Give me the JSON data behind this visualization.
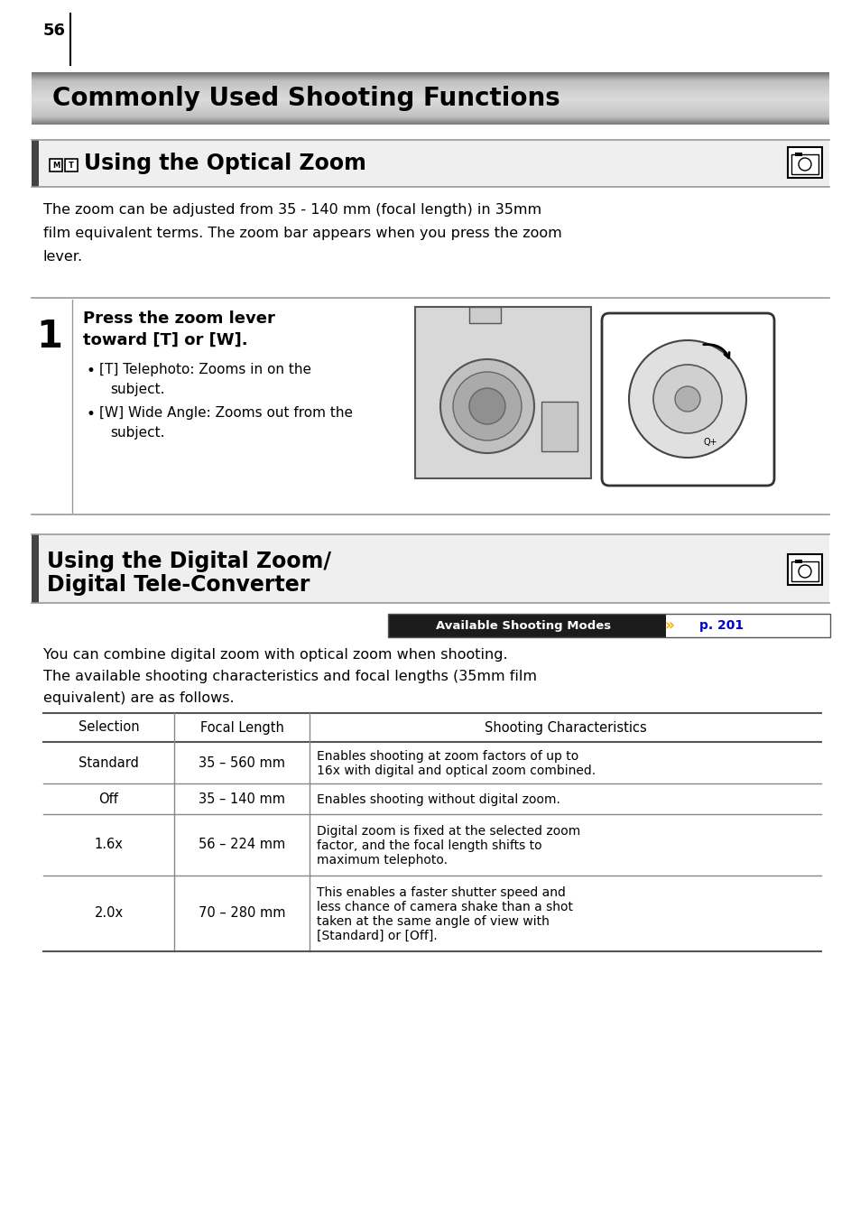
{
  "page_number": "56",
  "main_title": "Commonly Used Shooting Functions",
  "section1_title": "Using the Optical Zoom",
  "section1_body": "The zoom can be adjusted from 35 - 140 mm (focal length) in 35mm film equivalent terms. The zoom bar appears when you press the zoom lever.",
  "step1_title": "Press the zoom lever\ntoward [T] or [W].",
  "step1_bullet1": "[T] Telephoto: Zooms in on the subject.",
  "step1_bullet2": "[W] Wide Angle: Zooms out from the subject.",
  "section2_title1": "Using the Digital Zoom/",
  "section2_title2": "Digital Tele-Converter",
  "section2_modes_label": "Available Shooting Modes",
  "section2_modes_ref": "p. 201",
  "section2_body": "You can combine digital zoom with optical zoom when shooting.\nThe available shooting characteristics and focal lengths (35mm film\nequivalent) are as follows.",
  "table_headers": [
    "Selection",
    "Focal Length",
    "Shooting Characteristics"
  ],
  "table_rows": [
    [
      "Standard",
      "35 – 560 mm",
      "Enables shooting at zoom factors of up to\n16x with digital and optical zoom combined."
    ],
    [
      "Off",
      "35 – 140 mm",
      "Enables shooting without digital zoom."
    ],
    [
      "1.6x",
      "56 – 224 mm",
      "Digital zoom is fixed at the selected zoom\nfactor, and the focal length shifts to\nmaximum telephoto."
    ],
    [
      "2.0x",
      "70 – 280 mm",
      "This enables a faster shutter speed and\nless chance of camera shake than a shot\ntaken at the same angle of view with\n[Standard] or [Off]."
    ]
  ],
  "bg_color": "#ffffff",
  "modes_ref_color": "#0000cc"
}
